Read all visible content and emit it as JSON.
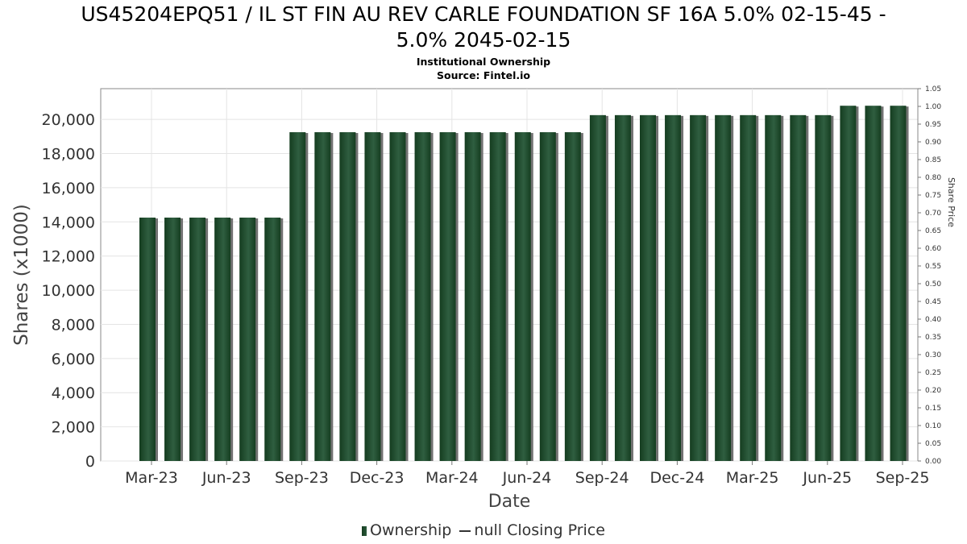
{
  "title": {
    "line1": "US45204EPQ51 / IL ST FIN AU REV CARLE FOUNDATION SF 16A 5.0% 02-15-45 -",
    "line2": "5.0% 2045-02-15",
    "subtitle": "Institutional Ownership",
    "source": "Source: Fintel.io"
  },
  "legend": {
    "ownership": "Ownership",
    "price": "null Closing Price"
  },
  "colors": {
    "bar_dark": "#153d20",
    "bar_light": "#2f5e40",
    "bar_shadow": "#8a8a8a",
    "grid": "#e4e4e4",
    "frame": "#888888"
  },
  "chart_data": {
    "type": "bar",
    "title": "US45204EPQ51 / IL ST FIN AU REV CARLE FOUNDATION SF 16A 5.0% 02-15-45 - 5.0% 2045-02-15",
    "xlabel": "Date",
    "ylabel": "Shares (x1000)",
    "y2label": "Share Price",
    "ylim": [
      0,
      21800
    ],
    "y2lim": [
      0,
      1.05
    ],
    "yticks": [
      "0",
      "2,000",
      "4,000",
      "6,000",
      "8,000",
      "10,000",
      "12,000",
      "14,000",
      "16,000",
      "18,000",
      "20,000"
    ],
    "y2ticks": [
      "0.00",
      "0.05",
      "0.10",
      "0.15",
      "0.20",
      "0.25",
      "0.30",
      "0.35",
      "0.40",
      "0.45",
      "0.50",
      "0.55",
      "0.60",
      "0.65",
      "0.70",
      "0.75",
      "0.80",
      "0.85",
      "0.90",
      "0.95",
      "1.00",
      "1.05"
    ],
    "xticks": [
      "Mar-23",
      "Jun-23",
      "Sep-23",
      "Dec-23",
      "Mar-24",
      "Jun-24",
      "Sep-24",
      "Dec-24",
      "Mar-25",
      "Jun-25",
      "Sep-25"
    ],
    "grid": true,
    "legend_position": "bottom",
    "series": [
      {
        "name": "Ownership",
        "values": [
          14250,
          14250,
          14250,
          14250,
          14250,
          14250,
          19250,
          19250,
          19250,
          19250,
          19250,
          19250,
          19250,
          19250,
          19250,
          19250,
          19250,
          19250,
          20250,
          20250,
          20250,
          20250,
          20250,
          20250,
          20250,
          20250,
          20250,
          20250,
          20800,
          20800,
          20800
        ]
      }
    ]
  }
}
